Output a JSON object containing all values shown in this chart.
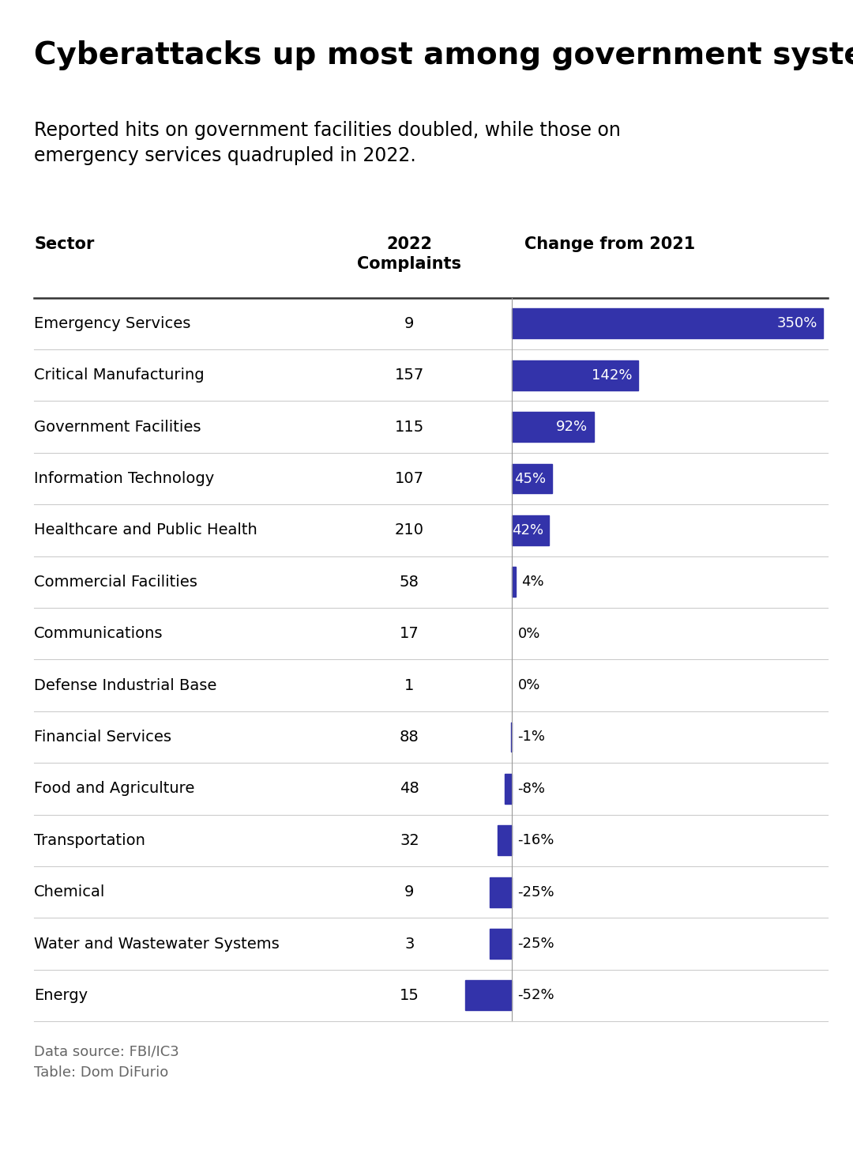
{
  "title": "Cyberattacks up most among government systems",
  "subtitle": "Reported hits on government facilities doubled, while those on\nemergency services quadrupled in 2022.",
  "col_sector": "Sector",
  "col_complaints": "2022\nComplaints",
  "col_change": "Change from 2021",
  "sectors": [
    "Emergency Services",
    "Critical Manufacturing",
    "Government Facilities",
    "Information Technology",
    "Healthcare and Public Health",
    "Commercial Facilities",
    "Communications",
    "Defense Industrial Base",
    "Financial Services",
    "Food and Agriculture",
    "Transportation",
    "Chemical",
    "Water and Wastewater Systems",
    "Energy"
  ],
  "complaints": [
    9,
    157,
    115,
    107,
    210,
    58,
    17,
    1,
    88,
    48,
    32,
    9,
    3,
    15
  ],
  "changes": [
    350,
    142,
    92,
    45,
    42,
    4,
    0,
    0,
    -1,
    -8,
    -16,
    -25,
    -25,
    -52
  ],
  "change_labels": [
    "350%",
    "142%",
    "92%",
    "45%",
    "42%",
    "4%",
    "0%",
    "0%",
    "-1%",
    "-8%",
    "-16%",
    "-25%",
    "-25%",
    "-52%"
  ],
  "bar_color": "#3333aa",
  "background_color": "#ffffff",
  "title_fontsize": 28,
  "subtitle_fontsize": 17,
  "footnote": "Data source: FBI/IC3\nTable: Dom DiFurio",
  "footnote_fontsize": 13
}
